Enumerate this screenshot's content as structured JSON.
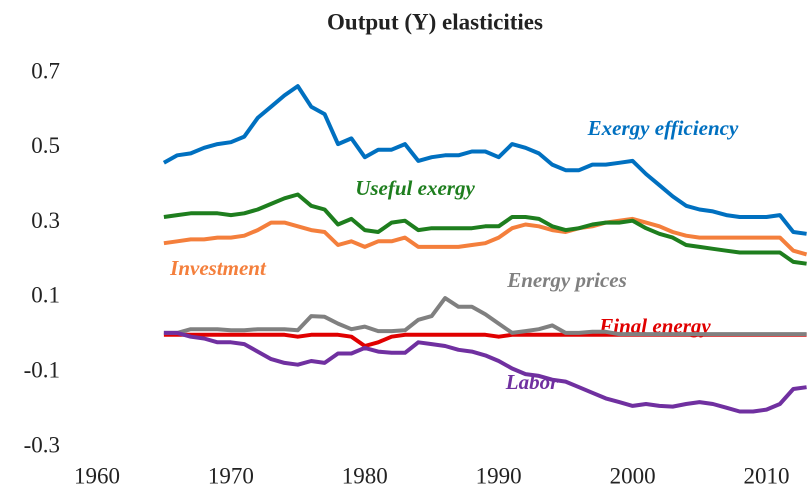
{
  "chart_data": {
    "type": "line",
    "title": "Output (Y) elasticities",
    "x": [
      1965,
      1966,
      1967,
      1968,
      1969,
      1970,
      1971,
      1972,
      1973,
      1974,
      1975,
      1976,
      1977,
      1978,
      1979,
      1980,
      1981,
      1982,
      1983,
      1984,
      1985,
      1986,
      1987,
      1988,
      1989,
      1990,
      1991,
      1992,
      1993,
      1994,
      1995,
      1996,
      1997,
      1998,
      1999,
      2000,
      2001,
      2002,
      2003,
      2004,
      2005,
      2006,
      2007,
      2008,
      2009,
      2010,
      2011,
      2012,
      2013
    ],
    "xlim": [
      1960,
      2013.4
    ],
    "xticks": [
      1960,
      1970,
      1980,
      1990,
      2000,
      2010
    ],
    "ylim": [
      -0.3,
      0.7
    ],
    "yticks": [
      -0.3,
      -0.1,
      0.1,
      0.3,
      0.5,
      0.7
    ],
    "grid": false,
    "series": [
      {
        "name": "Exergy efficiency",
        "color": "#0070c0",
        "values": [
          0.46,
          0.48,
          0.485,
          0.5,
          0.51,
          0.515,
          0.53,
          0.58,
          0.61,
          0.64,
          0.665,
          0.61,
          0.59,
          0.51,
          0.525,
          0.475,
          0.495,
          0.495,
          0.51,
          0.465,
          0.475,
          0.48,
          0.48,
          0.49,
          0.49,
          0.475,
          0.51,
          0.5,
          0.485,
          0.455,
          0.44,
          0.44,
          0.455,
          0.455,
          0.46,
          0.465,
          0.43,
          0.4,
          0.37,
          0.345,
          0.335,
          0.33,
          0.32,
          0.315,
          0.315,
          0.315,
          0.32,
          0.275,
          0.27
        ]
      },
      {
        "name": "Useful exergy",
        "color": "#1e7e1e",
        "values": [
          0.315,
          0.32,
          0.325,
          0.325,
          0.325,
          0.32,
          0.325,
          0.335,
          0.35,
          0.365,
          0.375,
          0.345,
          0.335,
          0.295,
          0.31,
          0.28,
          0.275,
          0.3,
          0.305,
          0.28,
          0.285,
          0.285,
          0.285,
          0.285,
          0.29,
          0.29,
          0.315,
          0.315,
          0.31,
          0.29,
          0.28,
          0.285,
          0.295,
          0.3,
          0.3,
          0.305,
          0.285,
          0.27,
          0.26,
          0.24,
          0.235,
          0.23,
          0.225,
          0.22,
          0.22,
          0.22,
          0.22,
          0.195,
          0.19
        ]
      },
      {
        "name": "Investment",
        "color": "#f47f3c",
        "values": [
          0.245,
          0.25,
          0.255,
          0.255,
          0.26,
          0.26,
          0.265,
          0.28,
          0.3,
          0.3,
          0.29,
          0.28,
          0.275,
          0.24,
          0.25,
          0.235,
          0.25,
          0.25,
          0.26,
          0.235,
          0.235,
          0.235,
          0.235,
          0.24,
          0.245,
          0.26,
          0.285,
          0.295,
          0.29,
          0.28,
          0.275,
          0.285,
          0.29,
          0.3,
          0.305,
          0.31,
          0.3,
          0.29,
          0.275,
          0.265,
          0.26,
          0.26,
          0.26,
          0.26,
          0.26,
          0.26,
          0.26,
          0.225,
          0.215
        ]
      },
      {
        "name": "Energy prices",
        "color": "#808080",
        "values": [
          0.005,
          0.005,
          0.015,
          0.015,
          0.015,
          0.012,
          0.012,
          0.015,
          0.015,
          0.015,
          0.012,
          0.05,
          0.048,
          0.03,
          0.015,
          0.022,
          0.01,
          0.01,
          0.012,
          0.04,
          0.05,
          0.098,
          0.075,
          0.075,
          0.055,
          0.03,
          0.005,
          0.01,
          0.015,
          0.025,
          0.005,
          0.005,
          0.008,
          0.008,
          0.002,
          0.002,
          0.002,
          0.002,
          0.002,
          0.002,
          0.002,
          0.002,
          0.002,
          0.002,
          0.002,
          0.002,
          0.002,
          0.002,
          0.002
        ]
      },
      {
        "name": "Final energy",
        "color": "#e00000",
        "values": [
          0,
          0,
          0,
          0,
          0,
          0,
          0,
          0,
          0,
          0,
          -0.005,
          0,
          0,
          0,
          -0.005,
          -0.03,
          -0.02,
          -0.005,
          0,
          0,
          0,
          0,
          0,
          0,
          0,
          -0.005,
          0,
          0,
          0,
          0,
          0,
          0,
          0,
          0,
          0,
          0,
          0,
          0,
          0,
          0,
          0,
          0,
          0,
          0,
          0,
          0,
          0,
          0,
          0
        ]
      },
      {
        "name": "Labor",
        "color": "#7030a0",
        "values": [
          0.005,
          0.005,
          -0.005,
          -0.01,
          -0.02,
          -0.02,
          -0.025,
          -0.045,
          -0.065,
          -0.075,
          -0.08,
          -0.07,
          -0.075,
          -0.05,
          -0.05,
          -0.035,
          -0.045,
          -0.048,
          -0.048,
          -0.02,
          -0.025,
          -0.03,
          -0.04,
          -0.045,
          -0.055,
          -0.07,
          -0.09,
          -0.105,
          -0.11,
          -0.12,
          -0.125,
          -0.14,
          -0.155,
          -0.17,
          -0.18,
          -0.19,
          -0.185,
          -0.19,
          -0.192,
          -0.185,
          -0.18,
          -0.185,
          -0.195,
          -0.205,
          -0.205,
          -0.2,
          -0.185,
          -0.145,
          -0.14
        ]
      }
    ]
  }
}
